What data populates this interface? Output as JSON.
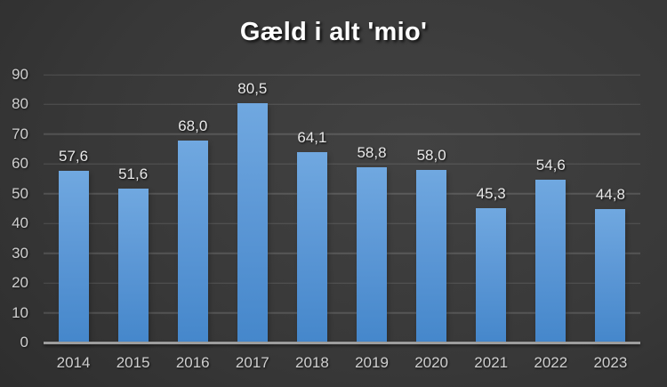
{
  "chart_data": {
    "type": "bar",
    "title": "Gæld i alt 'mio'",
    "categories": [
      "2014",
      "2015",
      "2016",
      "2017",
      "2018",
      "2019",
      "2020",
      "2021",
      "2022",
      "2023"
    ],
    "values": [
      57.6,
      51.6,
      68.0,
      80.5,
      64.1,
      58.8,
      58.0,
      45.3,
      54.6,
      44.8
    ],
    "value_labels": [
      "57,6",
      "51,6",
      "68,0",
      "80,5",
      "64,1",
      "58,8",
      "58,0",
      "45,3",
      "54,6",
      "44,8"
    ],
    "xlabel": "",
    "ylabel": "",
    "ylim": [
      0,
      90
    ],
    "ytick_step": 10,
    "yticks": [
      "0",
      "10",
      "20",
      "30",
      "40",
      "50",
      "60",
      "70",
      "80",
      "90"
    ],
    "grid": true,
    "legend": "none",
    "decimal_separator": ",",
    "colors": {
      "title_text": "#ffffff",
      "tick_text": "#cfcfcf",
      "data_label_text": "#e9e9e9",
      "bar_top": "#70a8e0",
      "bar_mid": "#5d98d6",
      "bar_bottom": "#4587cb",
      "gridline": "rgba(255,255,255,0.14)",
      "axis_line": "#9d9d9d",
      "background_center": "#424242",
      "background_edge": "#222222"
    }
  }
}
